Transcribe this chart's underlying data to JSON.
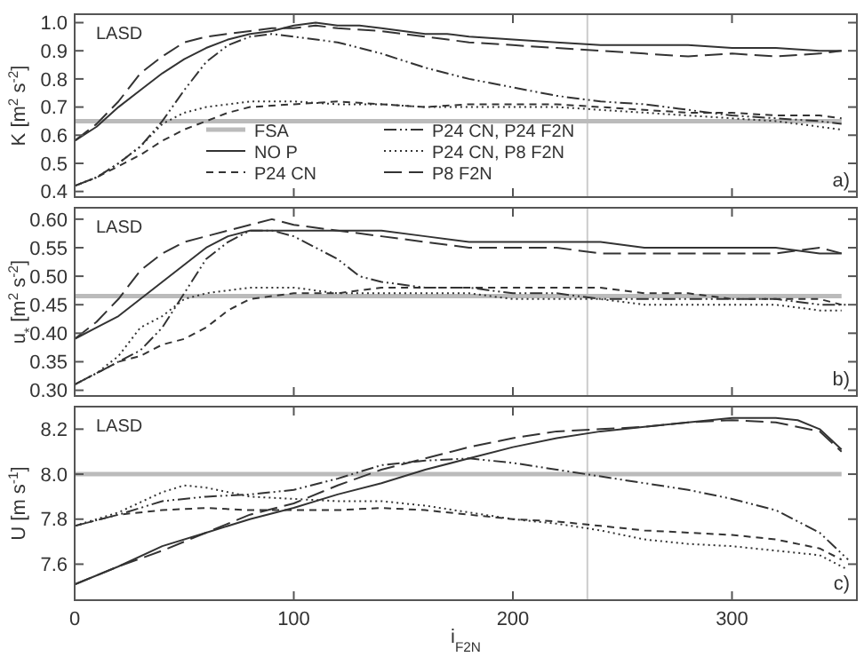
{
  "chart_data": [
    {
      "type": "line",
      "ylabel": "K [m$^{2}$ s$^{-2}$]",
      "xlim": [
        0,
        357
      ],
      "xticks": [
        0,
        100,
        200,
        300
      ],
      "ylim": [
        0.38,
        1.03
      ],
      "yticks": [
        0.4,
        0.5,
        0.6,
        0.7,
        0.8,
        0.9,
        {
          "value": 1,
          "label": "1.0"
        }
      ],
      "tick_labels": "y",
      "legend": "bottom",
      "annotations": [
        "LASD",
        "a)"
      ],
      "ref_lines": [
        {
          "axis": "x",
          "value": 234,
          "color": "#cccccc"
        }
      ],
      "series": [
        {
          "name": "FSA",
          "color": "#bbbbbb",
          "line_style": "solid",
          "x": [
            0,
            50,
            100,
            150,
            200,
            250,
            300,
            350
          ],
          "values": [
            0.65,
            0.65,
            0.65,
            0.65,
            0.65,
            0.65,
            0.65,
            0.65
          ]
        },
        {
          "name": "NO P",
          "color": "#333333",
          "line_style": "solid",
          "x": [
            0,
            10,
            20,
            30,
            40,
            50,
            60,
            70,
            80,
            90,
            100,
            110,
            120,
            130,
            140,
            150,
            160,
            170,
            180,
            200,
            220,
            240,
            260,
            280,
            300,
            320,
            340,
            350
          ],
          "values": [
            0.58,
            0.63,
            0.7,
            0.76,
            0.82,
            0.87,
            0.91,
            0.94,
            0.96,
            0.97,
            0.99,
            1.0,
            0.99,
            0.99,
            0.98,
            0.97,
            0.96,
            0.96,
            0.95,
            0.94,
            0.93,
            0.92,
            0.92,
            0.92,
            0.91,
            0.91,
            0.9,
            0.9
          ]
        },
        {
          "name": "P24 CN",
          "color": "#333333",
          "line_style": "dashed",
          "x": [
            0,
            10,
            20,
            30,
            40,
            50,
            60,
            70,
            80,
            100,
            120,
            140,
            160,
            180,
            200,
            220,
            240,
            260,
            280,
            300,
            320,
            340,
            350
          ],
          "values": [
            0.42,
            0.45,
            0.49,
            0.53,
            0.58,
            0.62,
            0.65,
            0.68,
            0.7,
            0.71,
            0.72,
            0.71,
            0.7,
            0.71,
            0.71,
            0.71,
            0.7,
            0.69,
            0.68,
            0.68,
            0.67,
            0.67,
            0.66
          ]
        },
        {
          "name": "P24 CN, P24 F2N",
          "color": "#333333",
          "line_style": "dashdot",
          "x": [
            0,
            10,
            20,
            30,
            40,
            50,
            60,
            70,
            80,
            90,
            100,
            120,
            140,
            160,
            180,
            200,
            220,
            240,
            260,
            280,
            300,
            320,
            340,
            350
          ],
          "values": [
            0.42,
            0.45,
            0.5,
            0.56,
            0.65,
            0.76,
            0.86,
            0.92,
            0.95,
            0.96,
            0.95,
            0.93,
            0.89,
            0.84,
            0.8,
            0.77,
            0.74,
            0.72,
            0.71,
            0.69,
            0.67,
            0.66,
            0.65,
            0.64
          ]
        },
        {
          "name": "P24 CN, P8 F2N",
          "color": "#333333",
          "line_style": "dotted",
          "x": [
            0,
            10,
            20,
            30,
            40,
            50,
            60,
            80,
            100,
            120,
            140,
            160,
            180,
            200,
            220,
            240,
            260,
            280,
            300,
            320,
            340,
            350
          ],
          "values": [
            0.42,
            0.45,
            0.5,
            0.56,
            0.64,
            0.68,
            0.7,
            0.72,
            0.72,
            0.71,
            0.71,
            0.7,
            0.7,
            0.7,
            0.7,
            0.69,
            0.68,
            0.67,
            0.66,
            0.65,
            0.63,
            0.62
          ]
        },
        {
          "name": "P8 F2N",
          "color": "#333333",
          "line_style": "longdash",
          "x": [
            0,
            10,
            20,
            30,
            40,
            50,
            60,
            70,
            80,
            90,
            100,
            110,
            120,
            140,
            160,
            180,
            200,
            220,
            240,
            260,
            280,
            300,
            320,
            340,
            350
          ],
          "values": [
            0.58,
            0.64,
            0.72,
            0.82,
            0.88,
            0.93,
            0.95,
            0.96,
            0.97,
            0.98,
            0.98,
            0.99,
            0.98,
            0.97,
            0.95,
            0.93,
            0.92,
            0.91,
            0.9,
            0.89,
            0.88,
            0.89,
            0.88,
            0.89,
            0.9
          ]
        }
      ]
    },
    {
      "type": "line",
      "ylabel": "u$_{*}$ [m$^{2}$ s$^{-2}$]",
      "xlim": [
        0,
        357
      ],
      "xticks": [
        0,
        100,
        200,
        300
      ],
      "ylim": [
        0.29,
        0.62
      ],
      "yticks": [
        {
          "value": 0.3,
          "label": "0.30"
        },
        0.35,
        {
          "value": 0.4,
          "label": "0.40"
        },
        0.45,
        {
          "value": 0.5,
          "label": "0.50"
        },
        0.55,
        {
          "value": 0.6,
          "label": "0.60"
        }
      ],
      "tick_labels": "y",
      "annotations": [
        "LASD",
        "b)"
      ],
      "ref_lines": [
        {
          "axis": "x",
          "value": 234,
          "color": "#cccccc"
        }
      ],
      "series": [
        {
          "color": "#bbbbbb",
          "line_style": "solid",
          "x": [
            0,
            50,
            100,
            150,
            200,
            250,
            300,
            350
          ],
          "values": [
            0.465,
            0.465,
            0.465,
            0.465,
            0.465,
            0.465,
            0.465,
            0.465
          ]
        },
        {
          "color": "#333333",
          "line_style": "solid",
          "x": [
            0,
            10,
            20,
            30,
            40,
            50,
            60,
            70,
            80,
            100,
            120,
            140,
            160,
            180,
            200,
            220,
            240,
            260,
            280,
            300,
            320,
            340,
            350
          ],
          "values": [
            0.39,
            0.41,
            0.43,
            0.46,
            0.49,
            0.52,
            0.55,
            0.57,
            0.58,
            0.58,
            0.58,
            0.58,
            0.57,
            0.56,
            0.56,
            0.56,
            0.56,
            0.55,
            0.55,
            0.55,
            0.55,
            0.54,
            0.54
          ]
        },
        {
          "color": "#333333",
          "line_style": "dashed",
          "x": [
            0,
            10,
            20,
            30,
            40,
            50,
            60,
            70,
            80,
            100,
            120,
            140,
            160,
            180,
            200,
            220,
            240,
            260,
            280,
            300,
            320,
            340,
            350
          ],
          "values": [
            0.31,
            0.33,
            0.35,
            0.36,
            0.38,
            0.39,
            0.41,
            0.44,
            0.46,
            0.47,
            0.47,
            0.48,
            0.48,
            0.48,
            0.48,
            0.48,
            0.48,
            0.47,
            0.47,
            0.46,
            0.46,
            0.46,
            0.45
          ]
        },
        {
          "color": "#333333",
          "line_style": "dashdot",
          "x": [
            0,
            10,
            20,
            30,
            40,
            50,
            60,
            70,
            80,
            90,
            100,
            110,
            120,
            130,
            140,
            160,
            180,
            200,
            220,
            240,
            260,
            280,
            300,
            320,
            340,
            353
          ],
          "values": [
            0.31,
            0.33,
            0.35,
            0.37,
            0.41,
            0.47,
            0.53,
            0.56,
            0.58,
            0.58,
            0.57,
            0.55,
            0.53,
            0.5,
            0.49,
            0.48,
            0.48,
            0.47,
            0.47,
            0.46,
            0.46,
            0.46,
            0.46,
            0.46,
            0.45,
            0.45
          ]
        },
        {
          "color": "#333333",
          "line_style": "dotted",
          "x": [
            0,
            10,
            20,
            30,
            40,
            50,
            60,
            80,
            100,
            120,
            140,
            160,
            180,
            200,
            220,
            240,
            260,
            280,
            300,
            320,
            340,
            350
          ],
          "values": [
            0.31,
            0.33,
            0.36,
            0.41,
            0.43,
            0.46,
            0.47,
            0.48,
            0.48,
            0.47,
            0.47,
            0.47,
            0.47,
            0.46,
            0.46,
            0.46,
            0.45,
            0.45,
            0.45,
            0.45,
            0.44,
            0.44
          ]
        },
        {
          "color": "#333333",
          "line_style": "longdash",
          "x": [
            0,
            10,
            20,
            30,
            40,
            50,
            60,
            70,
            80,
            90,
            100,
            120,
            140,
            160,
            180,
            200,
            220,
            240,
            260,
            280,
            300,
            320,
            340,
            350
          ],
          "values": [
            0.39,
            0.42,
            0.46,
            0.51,
            0.54,
            0.56,
            0.57,
            0.58,
            0.59,
            0.6,
            0.59,
            0.58,
            0.57,
            0.56,
            0.55,
            0.55,
            0.55,
            0.54,
            0.54,
            0.54,
            0.54,
            0.54,
            0.55,
            0.54
          ]
        }
      ]
    },
    {
      "type": "line",
      "xlabel": "i$_{F2N}$",
      "ylabel": "U [m s$^{-1}$]",
      "xlim": [
        0,
        357
      ],
      "xticks": [
        0,
        100,
        200,
        300
      ],
      "ylim": [
        7.44,
        8.3
      ],
      "yticks": [
        7.6,
        7.8,
        {
          "value": 8,
          "label": "8.0"
        },
        8.2
      ],
      "annotations": [
        "LASD",
        "c)"
      ],
      "ref_lines": [
        {
          "axis": "x",
          "value": 234,
          "color": "#cccccc"
        }
      ],
      "series": [
        {
          "color": "#bbbbbb",
          "line_style": "solid",
          "x": [
            0,
            50,
            100,
            150,
            200,
            250,
            300,
            350
          ],
          "values": [
            8.0,
            8.0,
            8.0,
            8.0,
            8.0,
            8.0,
            8.0,
            8.0
          ]
        },
        {
          "color": "#333333",
          "line_style": "solid",
          "x": [
            0,
            20,
            40,
            60,
            80,
            100,
            120,
            140,
            160,
            180,
            200,
            220,
            240,
            260,
            280,
            300,
            320,
            330,
            340,
            350
          ],
          "values": [
            7.51,
            7.59,
            7.68,
            7.74,
            7.8,
            7.85,
            7.91,
            7.96,
            8.02,
            8.07,
            8.12,
            8.16,
            8.19,
            8.21,
            8.23,
            8.25,
            8.25,
            8.24,
            8.2,
            8.11
          ]
        },
        {
          "color": "#333333",
          "line_style": "dashed",
          "x": [
            0,
            20,
            40,
            60,
            80,
            100,
            120,
            140,
            160,
            180,
            200,
            220,
            240,
            260,
            280,
            300,
            320,
            340,
            350
          ],
          "values": [
            7.77,
            7.82,
            7.84,
            7.85,
            7.84,
            7.84,
            7.84,
            7.85,
            7.84,
            7.82,
            7.8,
            7.79,
            7.77,
            7.75,
            7.74,
            7.73,
            7.71,
            7.67,
            7.62
          ]
        },
        {
          "color": "#333333",
          "line_style": "dashdot",
          "x": [
            0,
            20,
            40,
            60,
            80,
            100,
            120,
            140,
            160,
            180,
            200,
            220,
            240,
            260,
            280,
            300,
            320,
            340,
            353
          ],
          "values": [
            7.77,
            7.82,
            7.88,
            7.9,
            7.91,
            7.93,
            7.98,
            8.04,
            8.06,
            8.07,
            8.05,
            8.02,
            7.99,
            7.96,
            7.93,
            7.89,
            7.84,
            7.74,
            7.62
          ]
        },
        {
          "color": "#333333",
          "line_style": "dotted",
          "x": [
            0,
            20,
            40,
            50,
            60,
            80,
            100,
            120,
            140,
            160,
            180,
            200,
            220,
            240,
            260,
            280,
            300,
            320,
            340,
            352
          ],
          "values": [
            7.77,
            7.83,
            7.92,
            7.95,
            7.94,
            7.9,
            7.89,
            7.88,
            7.88,
            7.86,
            7.83,
            7.8,
            7.78,
            7.75,
            7.71,
            7.69,
            7.68,
            7.66,
            7.64,
            7.58
          ]
        },
        {
          "color": "#333333",
          "line_style": "longdash",
          "x": [
            0,
            20,
            40,
            60,
            80,
            100,
            120,
            140,
            160,
            180,
            200,
            220,
            240,
            260,
            280,
            300,
            320,
            340,
            350
          ],
          "values": [
            7.51,
            7.59,
            7.66,
            7.74,
            7.82,
            7.87,
            7.95,
            8.02,
            8.07,
            8.12,
            8.16,
            8.19,
            8.2,
            8.21,
            8.23,
            8.24,
            8.23,
            8.19,
            8.1
          ]
        }
      ]
    }
  ]
}
